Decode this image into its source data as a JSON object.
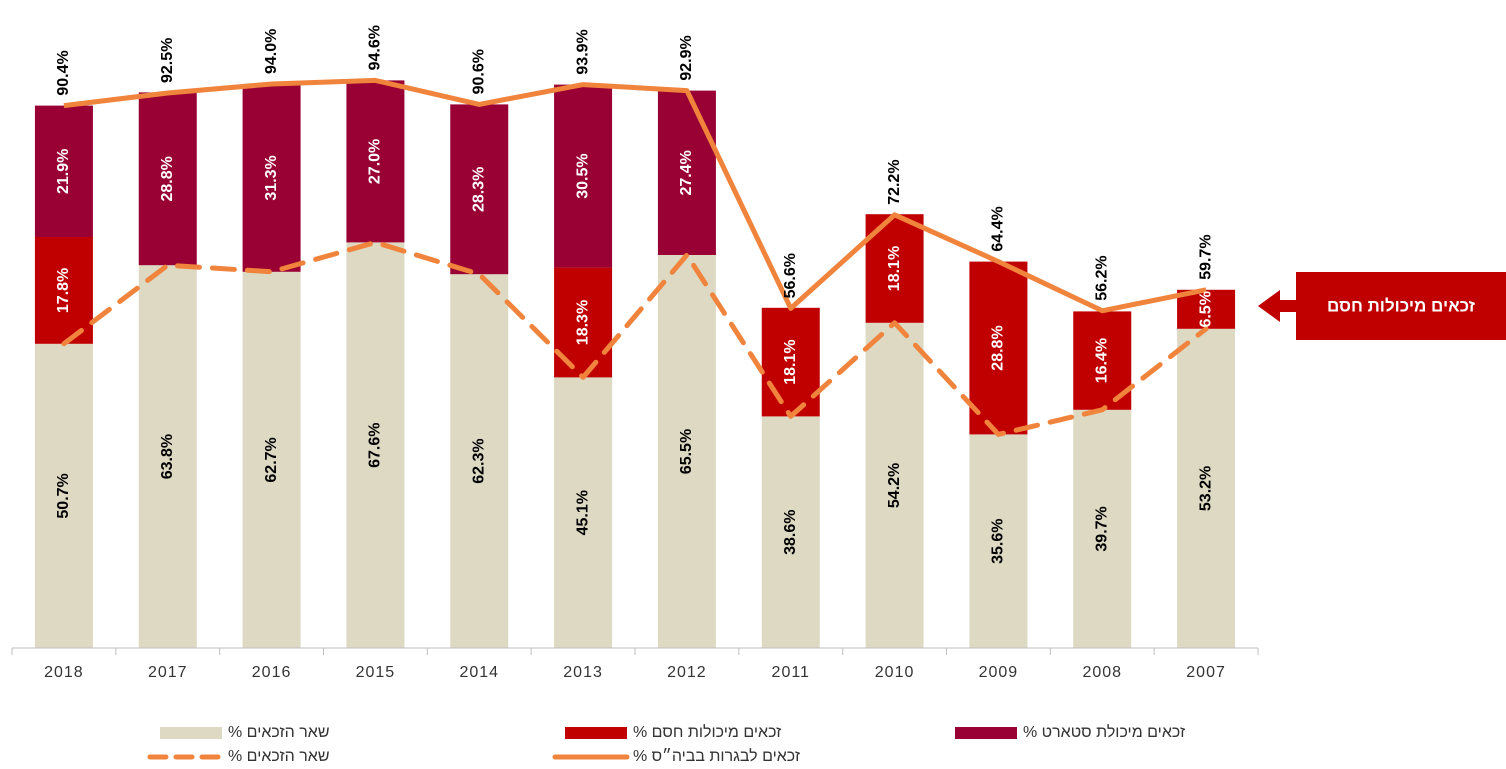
{
  "chart_data": {
    "type": "bar",
    "stacked": true,
    "categories": [
      "2018",
      "2017",
      "2016",
      "2015",
      "2014",
      "2013",
      "2012",
      "2011",
      "2010",
      "2009",
      "2008",
      "2007"
    ],
    "ylim": [
      0,
      100
    ],
    "series": [
      {
        "name": "שאר הזכאים %",
        "type": "bar",
        "color": "#ddd9c3",
        "values": [
          50.7,
          63.8,
          62.7,
          67.6,
          62.3,
          45.1,
          65.5,
          38.6,
          54.2,
          35.6,
          39.7,
          53.2
        ],
        "value_labels": [
          "50.7%",
          "63.8%",
          "62.7%",
          "67.6%",
          "62.3%",
          "45.1%",
          "65.5%",
          "38.6%",
          "54.2%",
          "35.6%",
          "39.7%",
          "53.2%"
        ]
      },
      {
        "name": "זכאים מיכולות חסם %",
        "type": "bar",
        "color": "#c00000",
        "values": [
          17.8,
          null,
          null,
          null,
          null,
          18.3,
          null,
          18.1,
          18.1,
          28.8,
          16.4,
          6.5
        ],
        "value_labels": [
          "17.8%",
          null,
          null,
          null,
          null,
          "18.3%",
          null,
          "18.1%",
          "18.1%",
          "28.8%",
          "16.4%",
          "6.5%"
        ]
      },
      {
        "name": "זכאים מיכולת סטארט %",
        "type": "bar",
        "color": "#990033",
        "values": [
          21.9,
          28.8,
          31.3,
          27.0,
          28.3,
          30.5,
          27.4,
          null,
          null,
          null,
          null,
          null
        ],
        "value_labels": [
          "21.9%",
          "28.8%",
          "31.3%",
          "27.0%",
          "28.3%",
          "30.5%",
          "27.4%",
          null,
          null,
          null,
          null,
          null
        ]
      },
      {
        "name": "זכאים לבגרות בביה״ס %",
        "type": "line",
        "color": "#f0843c",
        "dashed": false,
        "values": [
          90.4,
          92.5,
          94.0,
          94.6,
          90.6,
          93.9,
          92.9,
          56.6,
          72.2,
          64.4,
          56.2,
          59.7
        ],
        "value_labels": [
          "90.4%",
          "92.5%",
          "94.0%",
          "94.6%",
          "90.6%",
          "93.9%",
          "92.9%",
          "56.6%",
          "72.2%",
          "64.4%",
          "56.2%",
          "59.7%"
        ]
      },
      {
        "name": "שאר הזכאים %",
        "type": "line",
        "color": "#f0843c",
        "dashed": true,
        "values": [
          50.7,
          63.8,
          62.7,
          67.6,
          62.3,
          45.1,
          65.5,
          38.6,
          54.2,
          35.6,
          39.7,
          53.2
        ]
      }
    ],
    "annotation": "זכאים מיכולות חסם"
  }
}
